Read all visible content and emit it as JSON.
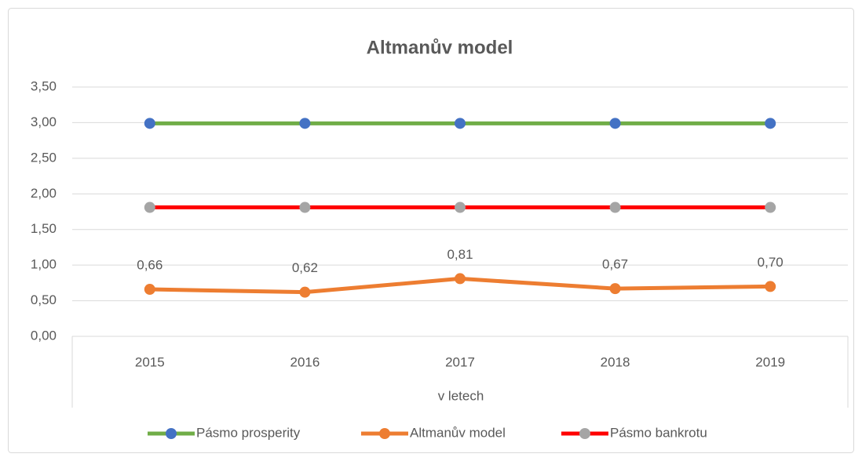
{
  "chart_data": {
    "type": "line",
    "title": "Altmanův model",
    "x_label": "v letech",
    "categories": [
      "2015",
      "2016",
      "2017",
      "2018",
      "2019"
    ],
    "series": [
      {
        "name": "Pásmo prosperity",
        "color": "#70ad47",
        "marker_color": "#4472c4",
        "values": [
          2.99,
          2.99,
          2.99,
          2.99,
          2.99
        ]
      },
      {
        "name": "Altmanův model",
        "color": "#ed7d31",
        "marker_color": "#ed7d31",
        "values": [
          0.66,
          0.62,
          0.81,
          0.67,
          0.7
        ],
        "value_labels": [
          "0,66",
          "0,62",
          "0,81",
          "0,67",
          "0,70"
        ]
      },
      {
        "name": "Pásmo bankrotu",
        "color": "#ff0000",
        "marker_color": "#a5a5a5",
        "values": [
          1.81,
          1.81,
          1.81,
          1.81,
          1.81
        ]
      }
    ],
    "ylim": [
      0,
      3.5
    ],
    "yticks": [
      {
        "value": 0,
        "label": "0,00"
      },
      {
        "value": 0.5,
        "label": "0,50"
      },
      {
        "value": 1,
        "label": "1,00"
      },
      {
        "value": 1.5,
        "label": "1,50"
      },
      {
        "value": 2,
        "label": "2,00"
      },
      {
        "value": 2.5,
        "label": "2,50"
      },
      {
        "value": 3,
        "label": "3,00"
      },
      {
        "value": 3.5,
        "label": "3,50"
      }
    ],
    "grid": true,
    "legend": "bottom"
  }
}
